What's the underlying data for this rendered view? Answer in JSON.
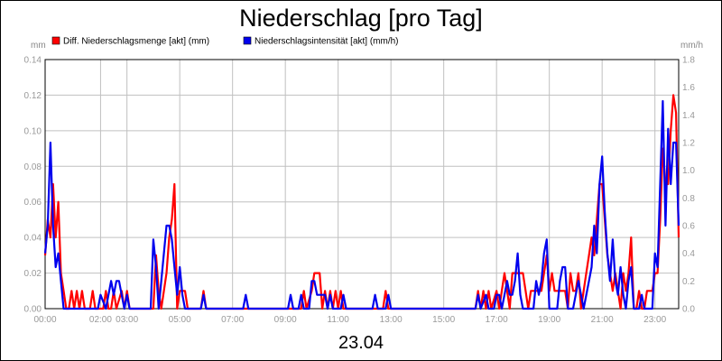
{
  "chart_data": {
    "type": "line",
    "title": "Niederschlag [pro Tag]",
    "date_label": "23.04",
    "left_unit": "mm",
    "right_unit": "mm/h",
    "y_left_range": [
      0,
      0.14
    ],
    "y_right_range": [
      0,
      1.8
    ],
    "y_left_ticks": [
      "0.00",
      "0.02",
      "0.04",
      "0.06",
      "0.08",
      "0.10",
      "0.12",
      "0.14"
    ],
    "y_right_ticks": [
      "0.0",
      "0.2",
      "0.4",
      "0.6",
      "0.8",
      "1.0",
      "1.2",
      "1.4",
      "1.6",
      "1.8"
    ],
    "x_range_hours": [
      0,
      24
    ],
    "x_ticks": [
      {
        "hour": 0,
        "label": "00:00"
      },
      {
        "hour": 2.1,
        "label": "02:00"
      },
      {
        "hour": 3.1,
        "label": "03:00"
      },
      {
        "hour": 5.1,
        "label": "05:00"
      },
      {
        "hour": 7.1,
        "label": "07:00"
      },
      {
        "hour": 9.1,
        "label": "09:00"
      },
      {
        "hour": 11.1,
        "label": "11:00"
      },
      {
        "hour": 13.1,
        "label": "13:00"
      },
      {
        "hour": 15.1,
        "label": "15:00"
      },
      {
        "hour": 17.1,
        "label": "17:00"
      },
      {
        "hour": 19.1,
        "label": "19:00"
      },
      {
        "hour": 21.1,
        "label": "21:00"
      },
      {
        "hour": 23.1,
        "label": "23:00"
      }
    ],
    "grid": true,
    "legend_position": "top-left",
    "series": [
      {
        "name": "Diff. Niederschlagsmenge [akt] (mm)",
        "axis": "left",
        "color": "#ff0000",
        "points": [
          [
            0,
            0.03
          ],
          [
            0.1,
            0.05
          ],
          [
            0.2,
            0.04
          ],
          [
            0.3,
            0.07
          ],
          [
            0.4,
            0.04
          ],
          [
            0.5,
            0.06
          ],
          [
            0.6,
            0.02
          ],
          [
            0.7,
            0.01
          ],
          [
            0.8,
            0.0
          ],
          [
            0.9,
            0.0
          ],
          [
            1.0,
            0.01
          ],
          [
            1.1,
            0.0
          ],
          [
            1.2,
            0.01
          ],
          [
            1.3,
            0.0
          ],
          [
            1.4,
            0.01
          ],
          [
            1.5,
            0.0
          ],
          [
            1.7,
            0.0
          ],
          [
            1.8,
            0.01
          ],
          [
            1.9,
            0.0
          ],
          [
            2.2,
            0.0
          ],
          [
            2.3,
            0.01
          ],
          [
            2.4,
            0.0
          ],
          [
            2.5,
            0.0
          ],
          [
            2.6,
            0.01
          ],
          [
            2.7,
            0.0
          ],
          [
            2.9,
            0.01
          ],
          [
            3.0,
            0.0
          ],
          [
            3.1,
            0.01
          ],
          [
            3.2,
            0.0
          ],
          [
            3.7,
            0.0
          ],
          [
            4.1,
            0.0
          ],
          [
            4.2,
            0.03
          ],
          [
            4.3,
            0.01
          ],
          [
            4.4,
            0.0
          ],
          [
            4.5,
            0.01
          ],
          [
            4.6,
            0.02
          ],
          [
            4.7,
            0.04
          ],
          [
            4.8,
            0.05
          ],
          [
            4.9,
            0.07
          ],
          [
            5.0,
            0.0
          ],
          [
            5.1,
            0.01
          ],
          [
            5.2,
            0.01
          ],
          [
            5.3,
            0.01
          ],
          [
            5.4,
            0.0
          ],
          [
            5.9,
            0.0
          ],
          [
            6.0,
            0.01
          ],
          [
            6.1,
            0.0
          ],
          [
            7.4,
            0.0
          ],
          [
            9.7,
            0.0
          ],
          [
            9.8,
            0.01
          ],
          [
            9.9,
            0.0
          ],
          [
            10.1,
            0.01
          ],
          [
            10.2,
            0.02
          ],
          [
            10.3,
            0.02
          ],
          [
            10.4,
            0.02
          ],
          [
            10.5,
            0.0
          ],
          [
            10.6,
            0.01
          ],
          [
            10.7,
            0.0
          ],
          [
            10.8,
            0.01
          ],
          [
            10.9,
            0.0
          ],
          [
            11.0,
            0.01
          ],
          [
            11.1,
            0.0
          ],
          [
            11.2,
            0.01
          ],
          [
            11.3,
            0.0
          ],
          [
            12.8,
            0.0
          ],
          [
            12.9,
            0.01
          ],
          [
            13.0,
            0.0
          ],
          [
            16.3,
            0.0
          ],
          [
            16.4,
            0.01
          ],
          [
            16.5,
            0.0
          ],
          [
            16.6,
            0.01
          ],
          [
            16.7,
            0.0
          ],
          [
            16.8,
            0.01
          ],
          [
            16.9,
            0.0
          ],
          [
            17.1,
            0.01
          ],
          [
            17.2,
            0.0
          ],
          [
            17.3,
            0.01
          ],
          [
            17.4,
            0.02
          ],
          [
            17.5,
            0.01
          ],
          [
            17.6,
            0.0
          ],
          [
            17.7,
            0.02
          ],
          [
            17.8,
            0.02
          ],
          [
            17.9,
            0.02
          ],
          [
            18.0,
            0.02
          ],
          [
            18.1,
            0.02
          ],
          [
            18.2,
            0.01
          ],
          [
            18.3,
            0.0
          ],
          [
            18.4,
            0.01
          ],
          [
            18.5,
            0.01
          ],
          [
            18.6,
            0.01
          ],
          [
            18.7,
            0.01
          ],
          [
            18.8,
            0.01
          ],
          [
            18.9,
            0.02
          ],
          [
            19.0,
            0.03
          ],
          [
            19.1,
            0.01
          ],
          [
            19.2,
            0.02
          ],
          [
            19.3,
            0.01
          ],
          [
            19.4,
            0.01
          ],
          [
            19.5,
            0.01
          ],
          [
            19.6,
            0.01
          ],
          [
            19.7,
            0.01
          ],
          [
            19.8,
            0.0
          ],
          [
            19.9,
            0.02
          ],
          [
            20.0,
            0.01
          ],
          [
            20.1,
            0.01
          ],
          [
            20.2,
            0.02
          ],
          [
            20.3,
            0.0
          ],
          [
            20.4,
            0.01
          ],
          [
            20.5,
            0.02
          ],
          [
            20.6,
            0.03
          ],
          [
            20.7,
            0.04
          ],
          [
            20.8,
            0.03
          ],
          [
            20.9,
            0.05
          ],
          [
            21.0,
            0.07
          ],
          [
            21.1,
            0.07
          ],
          [
            21.2,
            0.05
          ],
          [
            21.3,
            0.03
          ],
          [
            21.4,
            0.02
          ],
          [
            21.5,
            0.01
          ],
          [
            21.6,
            0.02
          ],
          [
            21.7,
            0.01
          ],
          [
            21.8,
            0.0
          ],
          [
            21.9,
            0.02
          ],
          [
            22.0,
            0.01
          ],
          [
            22.1,
            0.02
          ],
          [
            22.2,
            0.04
          ],
          [
            22.3,
            0.0
          ],
          [
            22.4,
            0.0
          ],
          [
            22.5,
            0.01
          ],
          [
            22.6,
            0.0
          ],
          [
            22.7,
            0.0
          ],
          [
            22.8,
            0.01
          ],
          [
            22.9,
            0.01
          ],
          [
            23.0,
            0.01
          ],
          [
            23.1,
            0.02
          ],
          [
            23.2,
            0.02
          ],
          [
            23.3,
            0.05
          ],
          [
            23.4,
            0.09
          ],
          [
            23.5,
            0.07
          ],
          [
            23.6,
            0.07
          ],
          [
            23.7,
            0.1
          ],
          [
            23.8,
            0.12
          ],
          [
            23.9,
            0.11
          ],
          [
            24.0,
            0.04
          ]
        ]
      },
      {
        "name": "Niederschlagsintensität [akt] (mm/h)",
        "axis": "right",
        "color": "#0000ee",
        "points": [
          [
            0,
            0.4
          ],
          [
            0.1,
            0.6
          ],
          [
            0.2,
            1.2
          ],
          [
            0.3,
            0.6
          ],
          [
            0.4,
            0.3
          ],
          [
            0.5,
            0.4
          ],
          [
            0.6,
            0.2
          ],
          [
            0.7,
            0.0
          ],
          [
            2.0,
            0.0
          ],
          [
            2.1,
            0.1
          ],
          [
            2.2,
            0.05
          ],
          [
            2.3,
            0.0
          ],
          [
            2.4,
            0.1
          ],
          [
            2.5,
            0.2
          ],
          [
            2.6,
            0.1
          ],
          [
            2.7,
            0.2
          ],
          [
            2.8,
            0.2
          ],
          [
            2.9,
            0.1
          ],
          [
            3.0,
            0.0
          ],
          [
            3.1,
            0.1
          ],
          [
            3.2,
            0.0
          ],
          [
            4.0,
            0.0
          ],
          [
            4.1,
            0.5
          ],
          [
            4.2,
            0.3
          ],
          [
            4.3,
            0.0
          ],
          [
            4.4,
            0.2
          ],
          [
            4.5,
            0.4
          ],
          [
            4.6,
            0.6
          ],
          [
            4.7,
            0.6
          ],
          [
            4.8,
            0.5
          ],
          [
            4.9,
            0.3
          ],
          [
            5.0,
            0.1
          ],
          [
            5.1,
            0.3
          ],
          [
            5.2,
            0.1
          ],
          [
            5.3,
            0.0
          ],
          [
            5.9,
            0.0
          ],
          [
            6.0,
            0.1
          ],
          [
            6.1,
            0.0
          ],
          [
            7.5,
            0.0
          ],
          [
            7.6,
            0.1
          ],
          [
            7.7,
            0.0
          ],
          [
            9.2,
            0.0
          ],
          [
            9.3,
            0.1
          ],
          [
            9.4,
            0.0
          ],
          [
            9.6,
            0.0
          ],
          [
            9.7,
            0.1
          ],
          [
            9.8,
            0.0
          ],
          [
            10.0,
            0.0
          ],
          [
            10.1,
            0.2
          ],
          [
            10.2,
            0.2
          ],
          [
            10.3,
            0.1
          ],
          [
            10.4,
            0.1
          ],
          [
            10.5,
            0.1
          ],
          [
            10.6,
            0.1
          ],
          [
            10.7,
            0.0
          ],
          [
            10.8,
            0.1
          ],
          [
            10.9,
            0.0
          ],
          [
            11.2,
            0.0
          ],
          [
            11.3,
            0.1
          ],
          [
            11.4,
            0.0
          ],
          [
            12.4,
            0.0
          ],
          [
            12.5,
            0.1
          ],
          [
            12.6,
            0.0
          ],
          [
            12.9,
            0.0
          ],
          [
            13.0,
            0.1
          ],
          [
            13.1,
            0.0
          ],
          [
            16.3,
            0.0
          ],
          [
            16.4,
            0.1
          ],
          [
            16.5,
            0.0
          ],
          [
            16.7,
            0.1
          ],
          [
            16.8,
            0.0
          ],
          [
            17.0,
            0.0
          ],
          [
            17.1,
            0.1
          ],
          [
            17.2,
            0.1
          ],
          [
            17.3,
            0.0
          ],
          [
            17.4,
            0.1
          ],
          [
            17.5,
            0.2
          ],
          [
            17.6,
            0.1
          ],
          [
            17.7,
            0.1
          ],
          [
            17.8,
            0.2
          ],
          [
            17.9,
            0.4
          ],
          [
            18.0,
            0.1
          ],
          [
            18.1,
            0.0
          ],
          [
            18.5,
            0.0
          ],
          [
            18.6,
            0.2
          ],
          [
            18.7,
            0.1
          ],
          [
            18.8,
            0.2
          ],
          [
            18.9,
            0.4
          ],
          [
            19.0,
            0.5
          ],
          [
            19.1,
            0.0
          ],
          [
            19.4,
            0.0
          ],
          [
            19.5,
            0.2
          ],
          [
            19.6,
            0.3
          ],
          [
            19.7,
            0.3
          ],
          [
            19.8,
            0.0
          ],
          [
            20.0,
            0.0
          ],
          [
            20.1,
            0.1
          ],
          [
            20.2,
            0.2
          ],
          [
            20.3,
            0.1
          ],
          [
            20.4,
            0.0
          ],
          [
            20.6,
            0.2
          ],
          [
            20.7,
            0.3
          ],
          [
            20.8,
            0.6
          ],
          [
            20.9,
            0.4
          ],
          [
            21.0,
            0.9
          ],
          [
            21.1,
            1.1
          ],
          [
            21.2,
            0.7
          ],
          [
            21.3,
            0.4
          ],
          [
            21.4,
            0.2
          ],
          [
            21.5,
            0.5
          ],
          [
            21.6,
            0.2
          ],
          [
            21.7,
            0.1
          ],
          [
            21.8,
            0.3
          ],
          [
            21.9,
            0.1
          ],
          [
            22.0,
            0.0
          ],
          [
            22.1,
            0.2
          ],
          [
            22.2,
            0.3
          ],
          [
            22.3,
            0.0
          ],
          [
            22.5,
            0.0
          ],
          [
            22.6,
            0.1
          ],
          [
            22.7,
            0.0
          ],
          [
            23.0,
            0.0
          ],
          [
            23.1,
            0.4
          ],
          [
            23.2,
            0.3
          ],
          [
            23.3,
            0.9
          ],
          [
            23.4,
            1.5
          ],
          [
            23.5,
            0.6
          ],
          [
            23.6,
            1.3
          ],
          [
            23.7,
            0.9
          ],
          [
            23.8,
            1.2
          ],
          [
            23.9,
            1.2
          ],
          [
            24.0,
            0.6
          ]
        ]
      }
    ]
  }
}
